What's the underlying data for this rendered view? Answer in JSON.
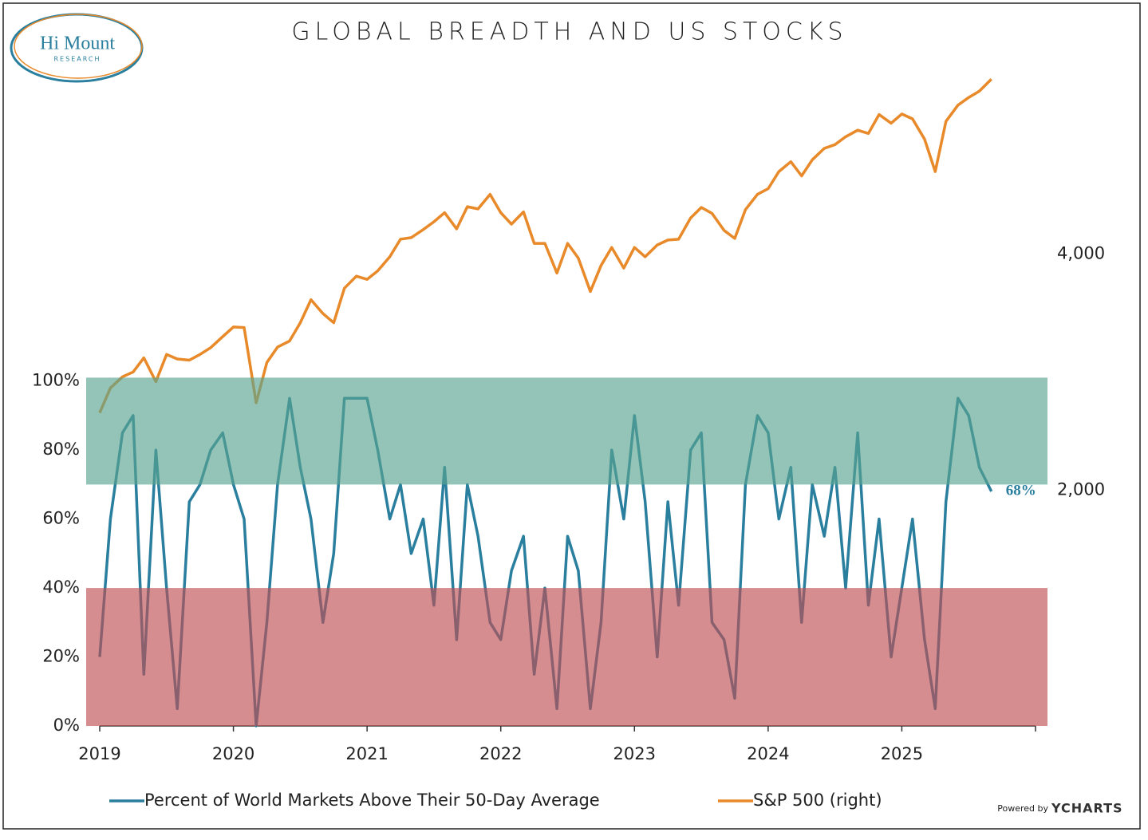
{
  "logo": {
    "name": "Hi Mount",
    "sub": "RESEARCH"
  },
  "credit": {
    "prefix": "Powered by",
    "brand": "YCHARTS"
  },
  "chart_data": {
    "type": "line",
    "title": "GLOBAL BREADTH AND US STOCKS",
    "x": [
      2019.0,
      2019.08,
      2019.17,
      2019.25,
      2019.33,
      2019.42,
      2019.5,
      2019.58,
      2019.67,
      2019.75,
      2019.83,
      2019.92,
      2020.0,
      2020.08,
      2020.17,
      2020.25,
      2020.33,
      2020.42,
      2020.5,
      2020.58,
      2020.67,
      2020.75,
      2020.83,
      2020.92,
      2021.0,
      2021.08,
      2021.17,
      2021.25,
      2021.33,
      2021.42,
      2021.5,
      2021.58,
      2021.67,
      2021.75,
      2021.83,
      2021.92,
      2022.0,
      2022.08,
      2022.17,
      2022.25,
      2022.33,
      2022.42,
      2022.5,
      2022.58,
      2022.67,
      2022.75,
      2022.83,
      2022.92,
      2023.0,
      2023.08,
      2023.17,
      2023.25,
      2023.33,
      2023.42,
      2023.5,
      2023.58,
      2023.67,
      2023.75,
      2023.83,
      2023.92,
      2024.0,
      2024.08,
      2024.17,
      2024.25,
      2024.33,
      2024.42,
      2024.5,
      2024.58,
      2024.67,
      2024.75,
      2024.83,
      2024.92,
      2025.0,
      2025.08,
      2025.17,
      2025.25,
      2025.33,
      2025.42,
      2025.5,
      2025.58,
      2025.67
    ],
    "series": [
      {
        "name": "Percent of World Markets Above Their 50-Day Average",
        "color": "#2a7f9e",
        "values": [
          20,
          60,
          85,
          90,
          15,
          80,
          40,
          5,
          65,
          70,
          80,
          85,
          70,
          60,
          0,
          30,
          70,
          95,
          75,
          60,
          30,
          50,
          95,
          95,
          95,
          80,
          60,
          70,
          50,
          60,
          35,
          75,
          25,
          70,
          55,
          30,
          25,
          45,
          55,
          15,
          40,
          5,
          55,
          45,
          5,
          30,
          80,
          60,
          90,
          65,
          20,
          65,
          35,
          80,
          85,
          30,
          25,
          8,
          70,
          90,
          85,
          60,
          75,
          30,
          70,
          55,
          75,
          40,
          85,
          35,
          60,
          20,
          40,
          60,
          25,
          5,
          65,
          95,
          90,
          75,
          68
        ],
        "value_labels": [
          null,
          null,
          null,
          null,
          null,
          null,
          null,
          null,
          null,
          null,
          null,
          null,
          null,
          null,
          null,
          null,
          null,
          null,
          null,
          null,
          null,
          null,
          null,
          null,
          null,
          null,
          null,
          null,
          null,
          null,
          null,
          null,
          null,
          null,
          null,
          null,
          null,
          null,
          null,
          null,
          null,
          null,
          null,
          null,
          null,
          null,
          null,
          null,
          null,
          null,
          null,
          null,
          null,
          null,
          null,
          null,
          null,
          null,
          null,
          null,
          null,
          null,
          null,
          null,
          null,
          null,
          null,
          null,
          null,
          null,
          null,
          null,
          null,
          null,
          null,
          null,
          null,
          null,
          null,
          null,
          "68%"
        ]
      },
      {
        "name": "S&P 500 (right)",
        "color": "#e8892a",
        "axis": "y2",
        "values": [
          2510,
          2700,
          2790,
          2830,
          2950,
          2750,
          2980,
          2940,
          2930,
          2980,
          3040,
          3140,
          3230,
          3225,
          2585,
          2910,
          3045,
          3100,
          3270,
          3500,
          3360,
          3270,
          3620,
          3750,
          3715,
          3810,
          3970,
          4180,
          4200,
          4300,
          4400,
          4520,
          4310,
          4600,
          4570,
          4770,
          4520,
          4370,
          4530,
          4130,
          4130,
          3785,
          4130,
          3955,
          3585,
          3870,
          4080,
          3840,
          4080,
          3970,
          4110,
          4170,
          4180,
          4450,
          4590,
          4510,
          4290,
          4190,
          4560,
          4770,
          4850,
          5100,
          5250,
          5035,
          5280,
          5460,
          5520,
          5650,
          5760,
          5705,
          6030,
          5880,
          6040,
          5955,
          5610,
          5100,
          5910,
          6200,
          6340,
          6460,
          6690
        ]
      }
    ],
    "xlim": [
      2019,
      2026
    ],
    "xticks": [
      2019,
      2020,
      2021,
      2022,
      2023,
      2024,
      2025
    ],
    "ylim": [
      0,
      192
    ],
    "yticks": [
      {
        "value": 0,
        "label": "0%"
      },
      {
        "value": 20,
        "label": "20%"
      },
      {
        "value": 40,
        "label": "40%"
      },
      {
        "value": 60,
        "label": "60%"
      },
      {
        "value": 80,
        "label": "80%"
      },
      {
        "value": 100,
        "label": "100%"
      }
    ],
    "y2lim": [
      1000,
      7000
    ],
    "y2scale": "log",
    "y2ticks": [
      {
        "value": 2000,
        "label": "2,000"
      },
      {
        "value": 4000,
        "label": "4,000"
      }
    ],
    "bands": [
      {
        "from": 70,
        "to": 101,
        "color": "#5aa591"
      },
      {
        "from": 0,
        "to": 40,
        "color": "#be5055"
      }
    ],
    "grid": false,
    "legend": "bottom"
  }
}
